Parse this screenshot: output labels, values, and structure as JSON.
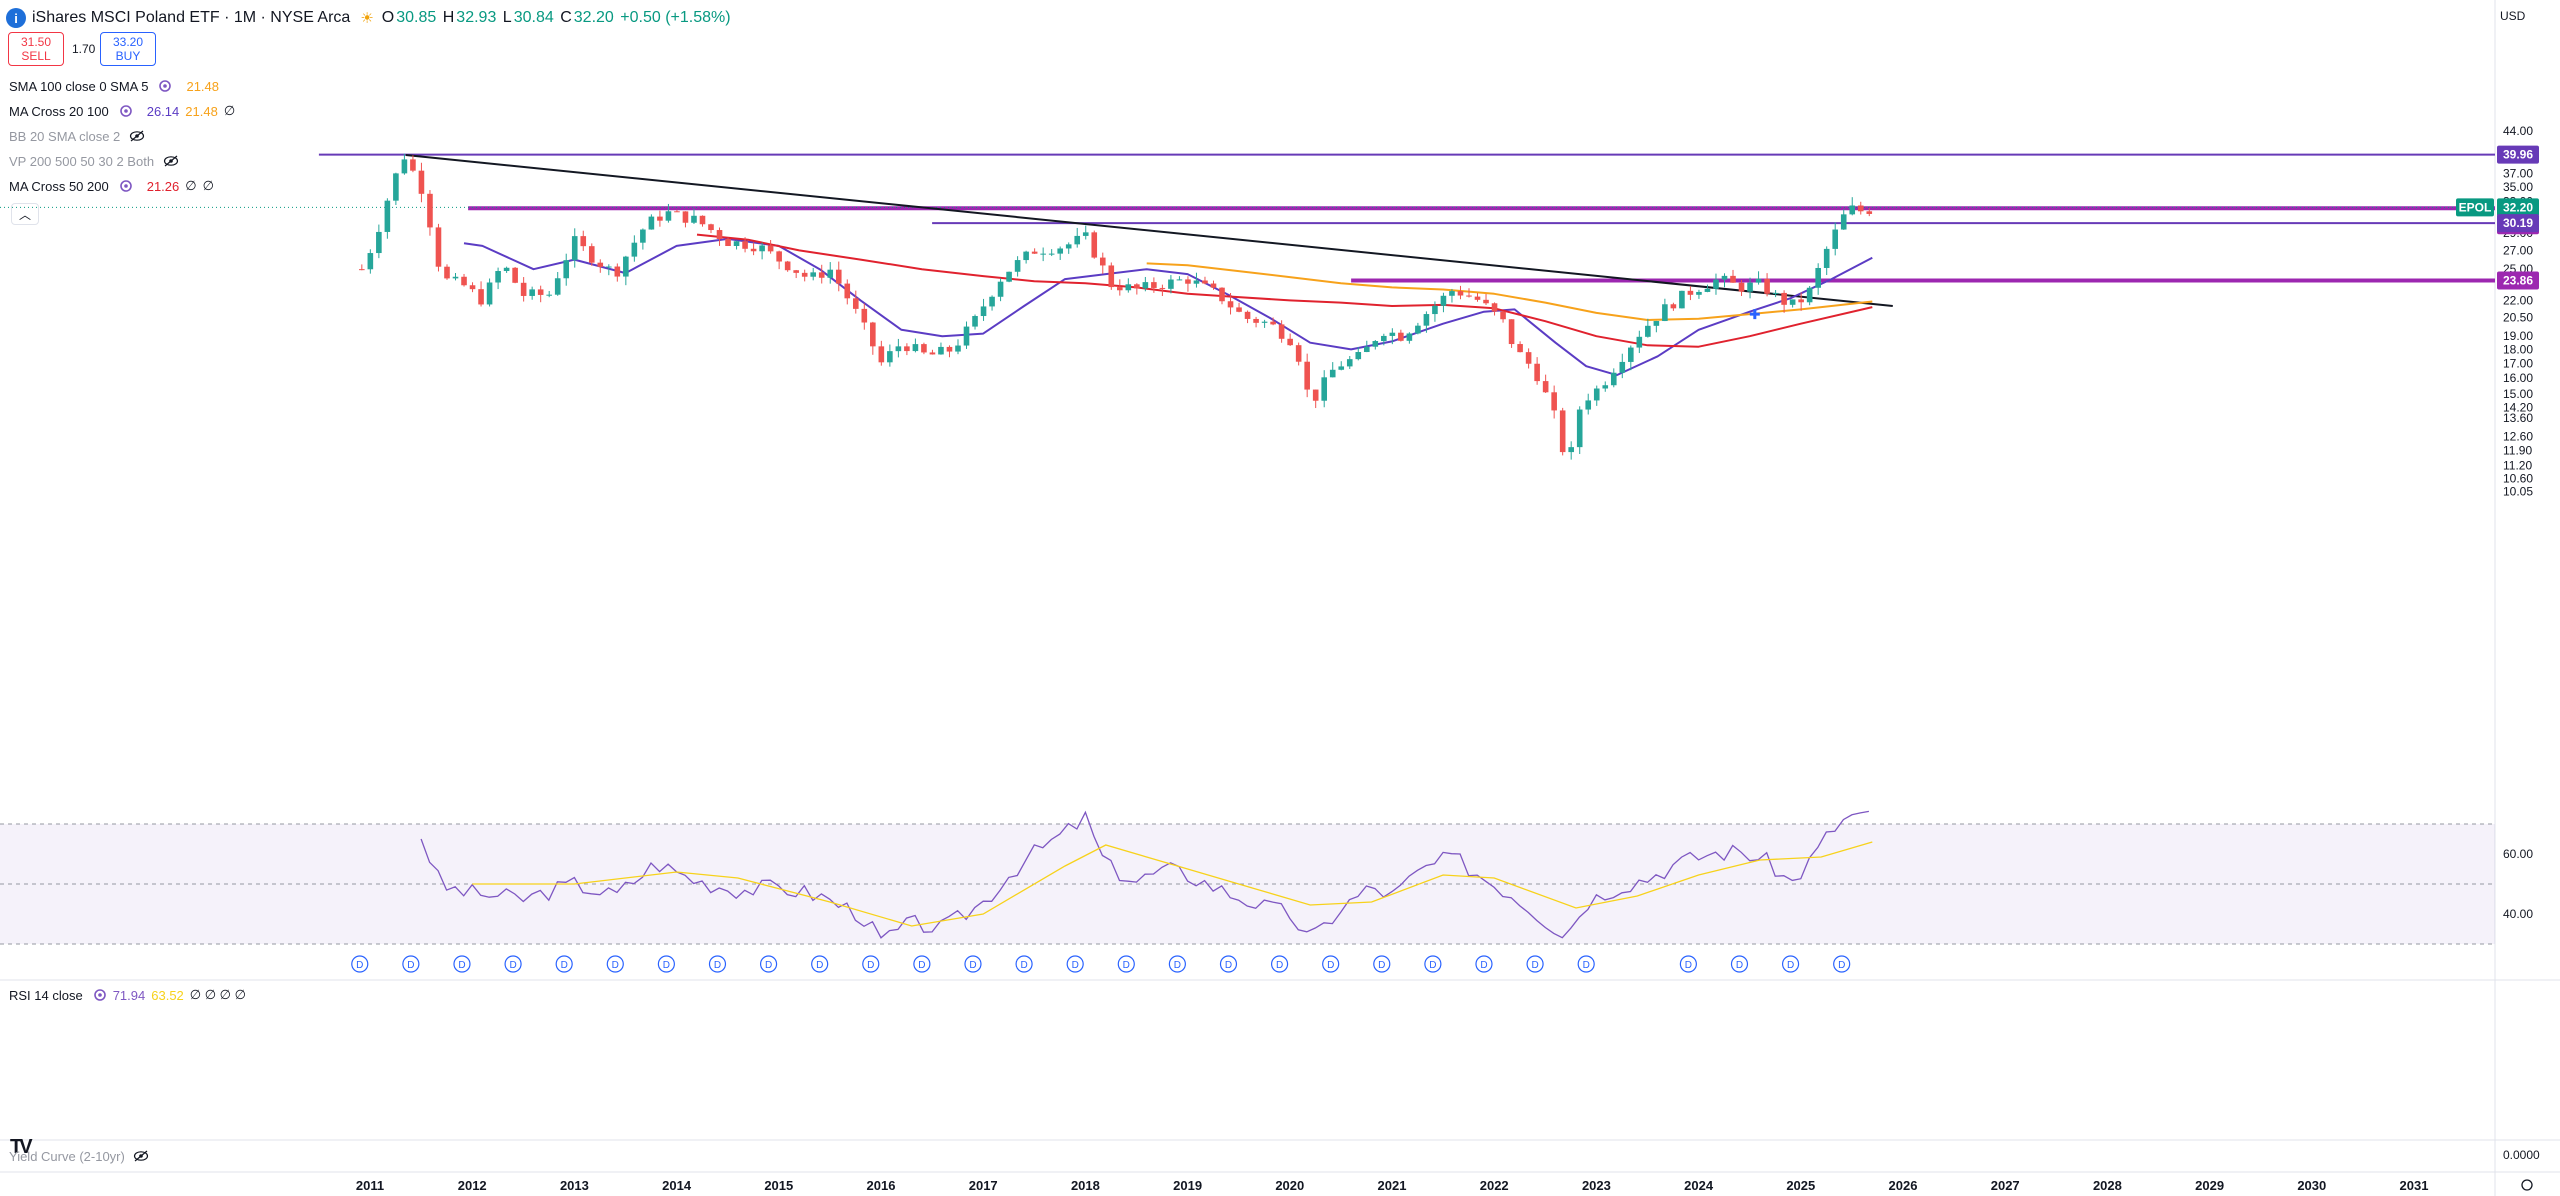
{
  "header": {
    "title": "iShares MSCI Poland ETF · 1M · NYSE Arca",
    "o_label": "O",
    "o_value": "30.85",
    "h_label": "H",
    "h_value": "32.93",
    "l_label": "L",
    "l_value": "30.84",
    "c_label": "C",
    "c_value": "32.20",
    "change": "+0.50 (+1.58%)"
  },
  "trade": {
    "sell_price": "31.50",
    "sell_label": "SELL",
    "spread": "1.70",
    "buy_price": "33.20",
    "buy_label": "BUY"
  },
  "indicators": [
    {
      "name": "SMA 100 close 0 SMA 5",
      "v1": "21.48",
      "v1_color": "#f7a21b",
      "v2": "",
      "v3": "",
      "visible": true
    },
    {
      "name": "MA Cross 20 100",
      "v1": "26.14",
      "v1_color": "#5b3cc4",
      "v2": "21.48",
      "v2_color": "#f7a21b",
      "v3": "∅",
      "visible": true
    },
    {
      "name": "BB 20 SMA close 2",
      "v1": "",
      "v2": "",
      "v3": "",
      "visible": false
    },
    {
      "name": "VP 200 500 50 30 2 Both",
      "v1": "",
      "v2": "",
      "v3": "",
      "visible": false
    },
    {
      "name": "MA Cross 50 200",
      "v1": "21.26",
      "v1_color": "#e0222e",
      "v2": "∅",
      "v3": "∅",
      "visible": true
    }
  ],
  "collapse_icon": "chevron-up-icon",
  "currency": "USD",
  "rsi": {
    "label": "RSI 14 close",
    "v1": "71.94",
    "v2": "63.52",
    "extras": "∅ ∅ ∅ ∅"
  },
  "yield_curve": {
    "label": "Yield Curve (2-10yr)"
  },
  "logo_text": "TV",
  "chart_data": {
    "type": "candlestick",
    "price_axis": {
      "scale": "log",
      "ticks": [
        "44.00",
        "37.00",
        "35.00",
        "33.00",
        "29.00",
        "27.00",
        "25.00",
        "22.00",
        "20.50",
        "19.00",
        "18.00",
        "17.00",
        "16.00",
        "15.00",
        "14.20",
        "13.60",
        "12.60",
        "11.90",
        "11.20",
        "10.60",
        "10.05"
      ]
    },
    "rsi_axis": {
      "ticks": [
        "60.00",
        "40.00"
      ],
      "bands": [
        70,
        50,
        30
      ]
    },
    "yc_axis": {
      "ticks": [
        "0.0000"
      ]
    },
    "x_ticks": [
      "2011",
      "2012",
      "2013",
      "2014",
      "2015",
      "2016",
      "2017",
      "2018",
      "2019",
      "2020",
      "2021",
      "2022",
      "2023",
      "2024",
      "2025",
      "2026",
      "2027",
      "2028",
      "2029",
      "2030",
      "2031"
    ],
    "price_labels": [
      {
        "text": "39.96",
        "value": 39.96,
        "color": "#673ab7"
      },
      {
        "text": "EPOL",
        "value": 32.2,
        "color": "#089981"
      },
      {
        "text": "32.20",
        "value": 32.2,
        "color": "#089981"
      },
      {
        "text": "32.08",
        "value": 32.08,
        "color": "#9c27b0"
      },
      {
        "text": "30.19",
        "value": 30.19,
        "color": "#673ab7"
      },
      {
        "text": "23.86",
        "value": 23.86,
        "color": "#9c27b0"
      }
    ],
    "horizontal_lines": [
      {
        "value": 39.96,
        "from": 2010.5,
        "color": "#673ab7"
      },
      {
        "value": 32.08,
        "from": 2011.96,
        "color": "#9c27b0"
      },
      {
        "value": 30.19,
        "from": 2016.5,
        "color": "#673ab7"
      },
      {
        "value": 23.86,
        "from": 2020.6,
        "color": "#9c27b0"
      }
    ],
    "trendline": {
      "x1": 2011.35,
      "y1": 39.9,
      "x2": 2025.9,
      "y2": 21.5
    },
    "dividends": [
      2010.9,
      2011.4,
      2011.9,
      2012.4,
      2012.9,
      2013.4,
      2013.9,
      2014.4,
      2014.9,
      2015.4,
      2015.9,
      2016.4,
      2016.9,
      2017.4,
      2017.9,
      2018.4,
      2018.9,
      2019.4,
      2019.9,
      2020.4,
      2020.9,
      2021.4,
      2021.9,
      2022.4,
      2022.9,
      2023.9,
      2024.4,
      2024.9,
      2025.4
    ],
    "dividend_symbol": "D",
    "cross_marker": {
      "x": 2024.55,
      "y": 20.8
    },
    "anchors": [
      [
        2010.92,
        25.0
      ],
      [
        2011.05,
        28.2
      ],
      [
        2011.2,
        34.5
      ],
      [
        2011.33,
        39.9
      ],
      [
        2011.5,
        35.0
      ],
      [
        2011.7,
        24.0
      ],
      [
        2011.9,
        23.5
      ],
      [
        2012.1,
        22.0
      ],
      [
        2012.3,
        25.5
      ],
      [
        2012.5,
        22.5
      ],
      [
        2012.75,
        22.5
      ],
      [
        2013.0,
        28.0
      ],
      [
        2013.2,
        26.0
      ],
      [
        2013.4,
        24.5
      ],
      [
        2013.7,
        30.0
      ],
      [
        2013.9,
        31.5
      ],
      [
        2014.2,
        30.5
      ],
      [
        2014.5,
        28.0
      ],
      [
        2014.8,
        27.5
      ],
      [
        2015.0,
        26.0
      ],
      [
        2015.3,
        24.0
      ],
      [
        2015.5,
        25.0
      ],
      [
        2015.75,
        21.0
      ],
      [
        2016.0,
        17.0
      ],
      [
        2016.2,
        18.5
      ],
      [
        2016.45,
        17.5
      ],
      [
        2016.7,
        18.0
      ],
      [
        2016.9,
        20.0
      ],
      [
        2017.2,
        24.5
      ],
      [
        2017.5,
        27.0
      ],
      [
        2017.8,
        27.5
      ],
      [
        2018.0,
        28.5
      ],
      [
        2018.25,
        23.5
      ],
      [
        2018.5,
        23.0
      ],
      [
        2018.75,
        23.5
      ],
      [
        2019.0,
        24.0
      ],
      [
        2019.3,
        22.5
      ],
      [
        2019.55,
        20.5
      ],
      [
        2019.8,
        20.0
      ],
      [
        2020.05,
        18.5
      ],
      [
        2020.2,
        14.3
      ],
      [
        2020.45,
        16.8
      ],
      [
        2020.7,
        17.5
      ],
      [
        2020.9,
        19.5
      ],
      [
        2021.1,
        19.0
      ],
      [
        2021.35,
        21.0
      ],
      [
        2021.6,
        23.0
      ],
      [
        2021.85,
        22.0
      ],
      [
        2022.1,
        20.0
      ],
      [
        2022.2,
        18.0
      ],
      [
        2022.4,
        16.5
      ],
      [
        2022.6,
        13.5
      ],
      [
        2022.72,
        10.9
      ],
      [
        2022.85,
        14.5
      ],
      [
        2023.05,
        15.5
      ],
      [
        2023.25,
        17.5
      ],
      [
        2023.45,
        19.5
      ],
      [
        2023.7,
        21.5
      ],
      [
        2023.95,
        23.0
      ],
      [
        2024.2,
        24.0
      ],
      [
        2024.4,
        23.2
      ],
      [
        2024.6,
        23.5
      ],
      [
        2024.8,
        22.0
      ],
      [
        2024.95,
        21.5
      ],
      [
        2025.1,
        23.0
      ],
      [
        2025.25,
        27.0
      ],
      [
        2025.42,
        31.0
      ],
      [
        2025.53,
        32.3
      ],
      [
        2025.62,
        31.4
      ],
      [
        2025.7,
        32.2
      ]
    ],
    "ma_lines": [
      {
        "name": "",
        "color": "#5b3cc4",
        "points": [
          [
            2011.92,
            27.8
          ],
          [
            2012.1,
            27.5
          ],
          [
            2012.6,
            25.0
          ],
          [
            2013.0,
            26.0
          ],
          [
            2013.5,
            24.6
          ],
          [
            2014.0,
            27.5
          ],
          [
            2014.5,
            28.3
          ],
          [
            2015.0,
            27.5
          ],
          [
            2015.4,
            25.0
          ],
          [
            2015.8,
            22.0
          ],
          [
            2016.2,
            19.5
          ],
          [
            2016.6,
            19.0
          ],
          [
            2017.0,
            19.2
          ],
          [
            2017.4,
            21.5
          ],
          [
            2017.8,
            24.0
          ],
          [
            2018.2,
            24.5
          ],
          [
            2018.6,
            25.0
          ],
          [
            2019.0,
            24.5
          ],
          [
            2019.4,
            22.5
          ],
          [
            2019.8,
            20.5
          ],
          [
            2020.2,
            18.5
          ],
          [
            2020.6,
            18.0
          ],
          [
            2021.0,
            18.6
          ],
          [
            2021.5,
            20.0
          ],
          [
            2021.9,
            21.0
          ],
          [
            2022.2,
            21.2
          ],
          [
            2022.6,
            18.5
          ],
          [
            2022.9,
            16.8
          ],
          [
            2023.2,
            16.2
          ],
          [
            2023.6,
            17.5
          ],
          [
            2024.0,
            19.5
          ],
          [
            2024.5,
            21.0
          ],
          [
            2024.9,
            22.2
          ],
          [
            2025.3,
            24.0
          ],
          [
            2025.7,
            26.2
          ]
        ]
      },
      {
        "name": "",
        "color": "#f7a21b",
        "points": [
          [
            2018.6,
            25.6
          ],
          [
            2019.0,
            25.4
          ],
          [
            2019.5,
            24.8
          ],
          [
            2020.0,
            24.2
          ],
          [
            2020.5,
            23.6
          ],
          [
            2021.0,
            23.2
          ],
          [
            2021.5,
            23.0
          ],
          [
            2022.0,
            22.6
          ],
          [
            2022.5,
            21.8
          ],
          [
            2023.0,
            20.9
          ],
          [
            2023.5,
            20.3
          ],
          [
            2024.0,
            20.4
          ],
          [
            2024.5,
            20.8
          ],
          [
            2025.0,
            21.2
          ],
          [
            2025.7,
            21.9
          ]
        ]
      },
      {
        "name": "",
        "color": "#e0222e",
        "points": [
          [
            2014.2,
            28.8
          ],
          [
            2014.7,
            28.2
          ],
          [
            2015.2,
            27.0
          ],
          [
            2015.8,
            26.0
          ],
          [
            2016.4,
            25.0
          ],
          [
            2017.0,
            24.3
          ],
          [
            2017.5,
            23.8
          ],
          [
            2018.0,
            23.6
          ],
          [
            2018.5,
            23.2
          ],
          [
            2019.0,
            22.6
          ],
          [
            2019.5,
            22.3
          ],
          [
            2020.0,
            22.0
          ],
          [
            2020.5,
            21.8
          ],
          [
            2021.0,
            21.5
          ],
          [
            2021.5,
            21.6
          ],
          [
            2022.0,
            21.3
          ],
          [
            2022.5,
            20.2
          ],
          [
            2023.0,
            19.0
          ],
          [
            2023.5,
            18.3
          ],
          [
            2024.0,
            18.2
          ],
          [
            2024.5,
            19.0
          ],
          [
            2025.0,
            20.0
          ],
          [
            2025.7,
            21.4
          ]
        ]
      }
    ],
    "rsi_anchors": [
      [
        2011.5,
        66
      ],
      [
        2011.7,
        49
      ],
      [
        2012.0,
        47
      ],
      [
        2012.5,
        45
      ],
      [
        2013.0,
        50
      ],
      [
        2013.4,
        46
      ],
      [
        2013.8,
        57
      ],
      [
        2014.2,
        51
      ],
      [
        2014.6,
        48
      ],
      [
        2015.0,
        49
      ],
      [
        2015.4,
        46
      ],
      [
        2015.8,
        40
      ],
      [
        2016.0,
        31
      ],
      [
        2016.3,
        37
      ],
      [
        2016.6,
        35
      ],
      [
        2017.0,
        44
      ],
      [
        2017.4,
        58
      ],
      [
        2017.8,
        67
      ],
      [
        2018.0,
        72
      ],
      [
        2018.2,
        56
      ],
      [
        2018.5,
        51
      ],
      [
        2018.8,
        55
      ],
      [
        2019.0,
        53
      ],
      [
        2019.4,
        47
      ],
      [
        2019.7,
        43
      ],
      [
        2020.0,
        40
      ],
      [
        2020.2,
        31
      ],
      [
        2020.5,
        42
      ],
      [
        2020.8,
        49
      ],
      [
        2021.0,
        46
      ],
      [
        2021.3,
        55
      ],
      [
        2021.6,
        59
      ],
      [
        2021.9,
        52
      ],
      [
        2022.2,
        46
      ],
      [
        2022.5,
        38
      ],
      [
        2022.7,
        33
      ],
      [
        2022.9,
        44
      ],
      [
        2023.2,
        49
      ],
      [
        2023.5,
        52
      ],
      [
        2023.8,
        57
      ],
      [
        2024.1,
        60
      ],
      [
        2024.4,
        61
      ],
      [
        2024.7,
        57
      ],
      [
        2024.9,
        50
      ],
      [
        2025.1,
        58
      ],
      [
        2025.3,
        68
      ],
      [
        2025.5,
        73
      ],
      [
        2025.7,
        72
      ]
    ],
    "rsi_ma_anchors": [
      [
        2012.0,
        50
      ],
      [
        2013.0,
        50
      ],
      [
        2014.0,
        54
      ],
      [
        2014.6,
        52
      ],
      [
        2015.5,
        44
      ],
      [
        2016.3,
        36
      ],
      [
        2017.0,
        40
      ],
      [
        2017.8,
        56
      ],
      [
        2018.2,
        63
      ],
      [
        2018.8,
        57
      ],
      [
        2019.5,
        50
      ],
      [
        2020.2,
        43
      ],
      [
        2020.8,
        44
      ],
      [
        2021.5,
        53
      ],
      [
        2022.0,
        52
      ],
      [
        2022.8,
        42
      ],
      [
        2023.4,
        46
      ],
      [
        2024.0,
        53
      ],
      [
        2024.6,
        58
      ],
      [
        2025.2,
        59
      ],
      [
        2025.7,
        64
      ]
    ]
  }
}
